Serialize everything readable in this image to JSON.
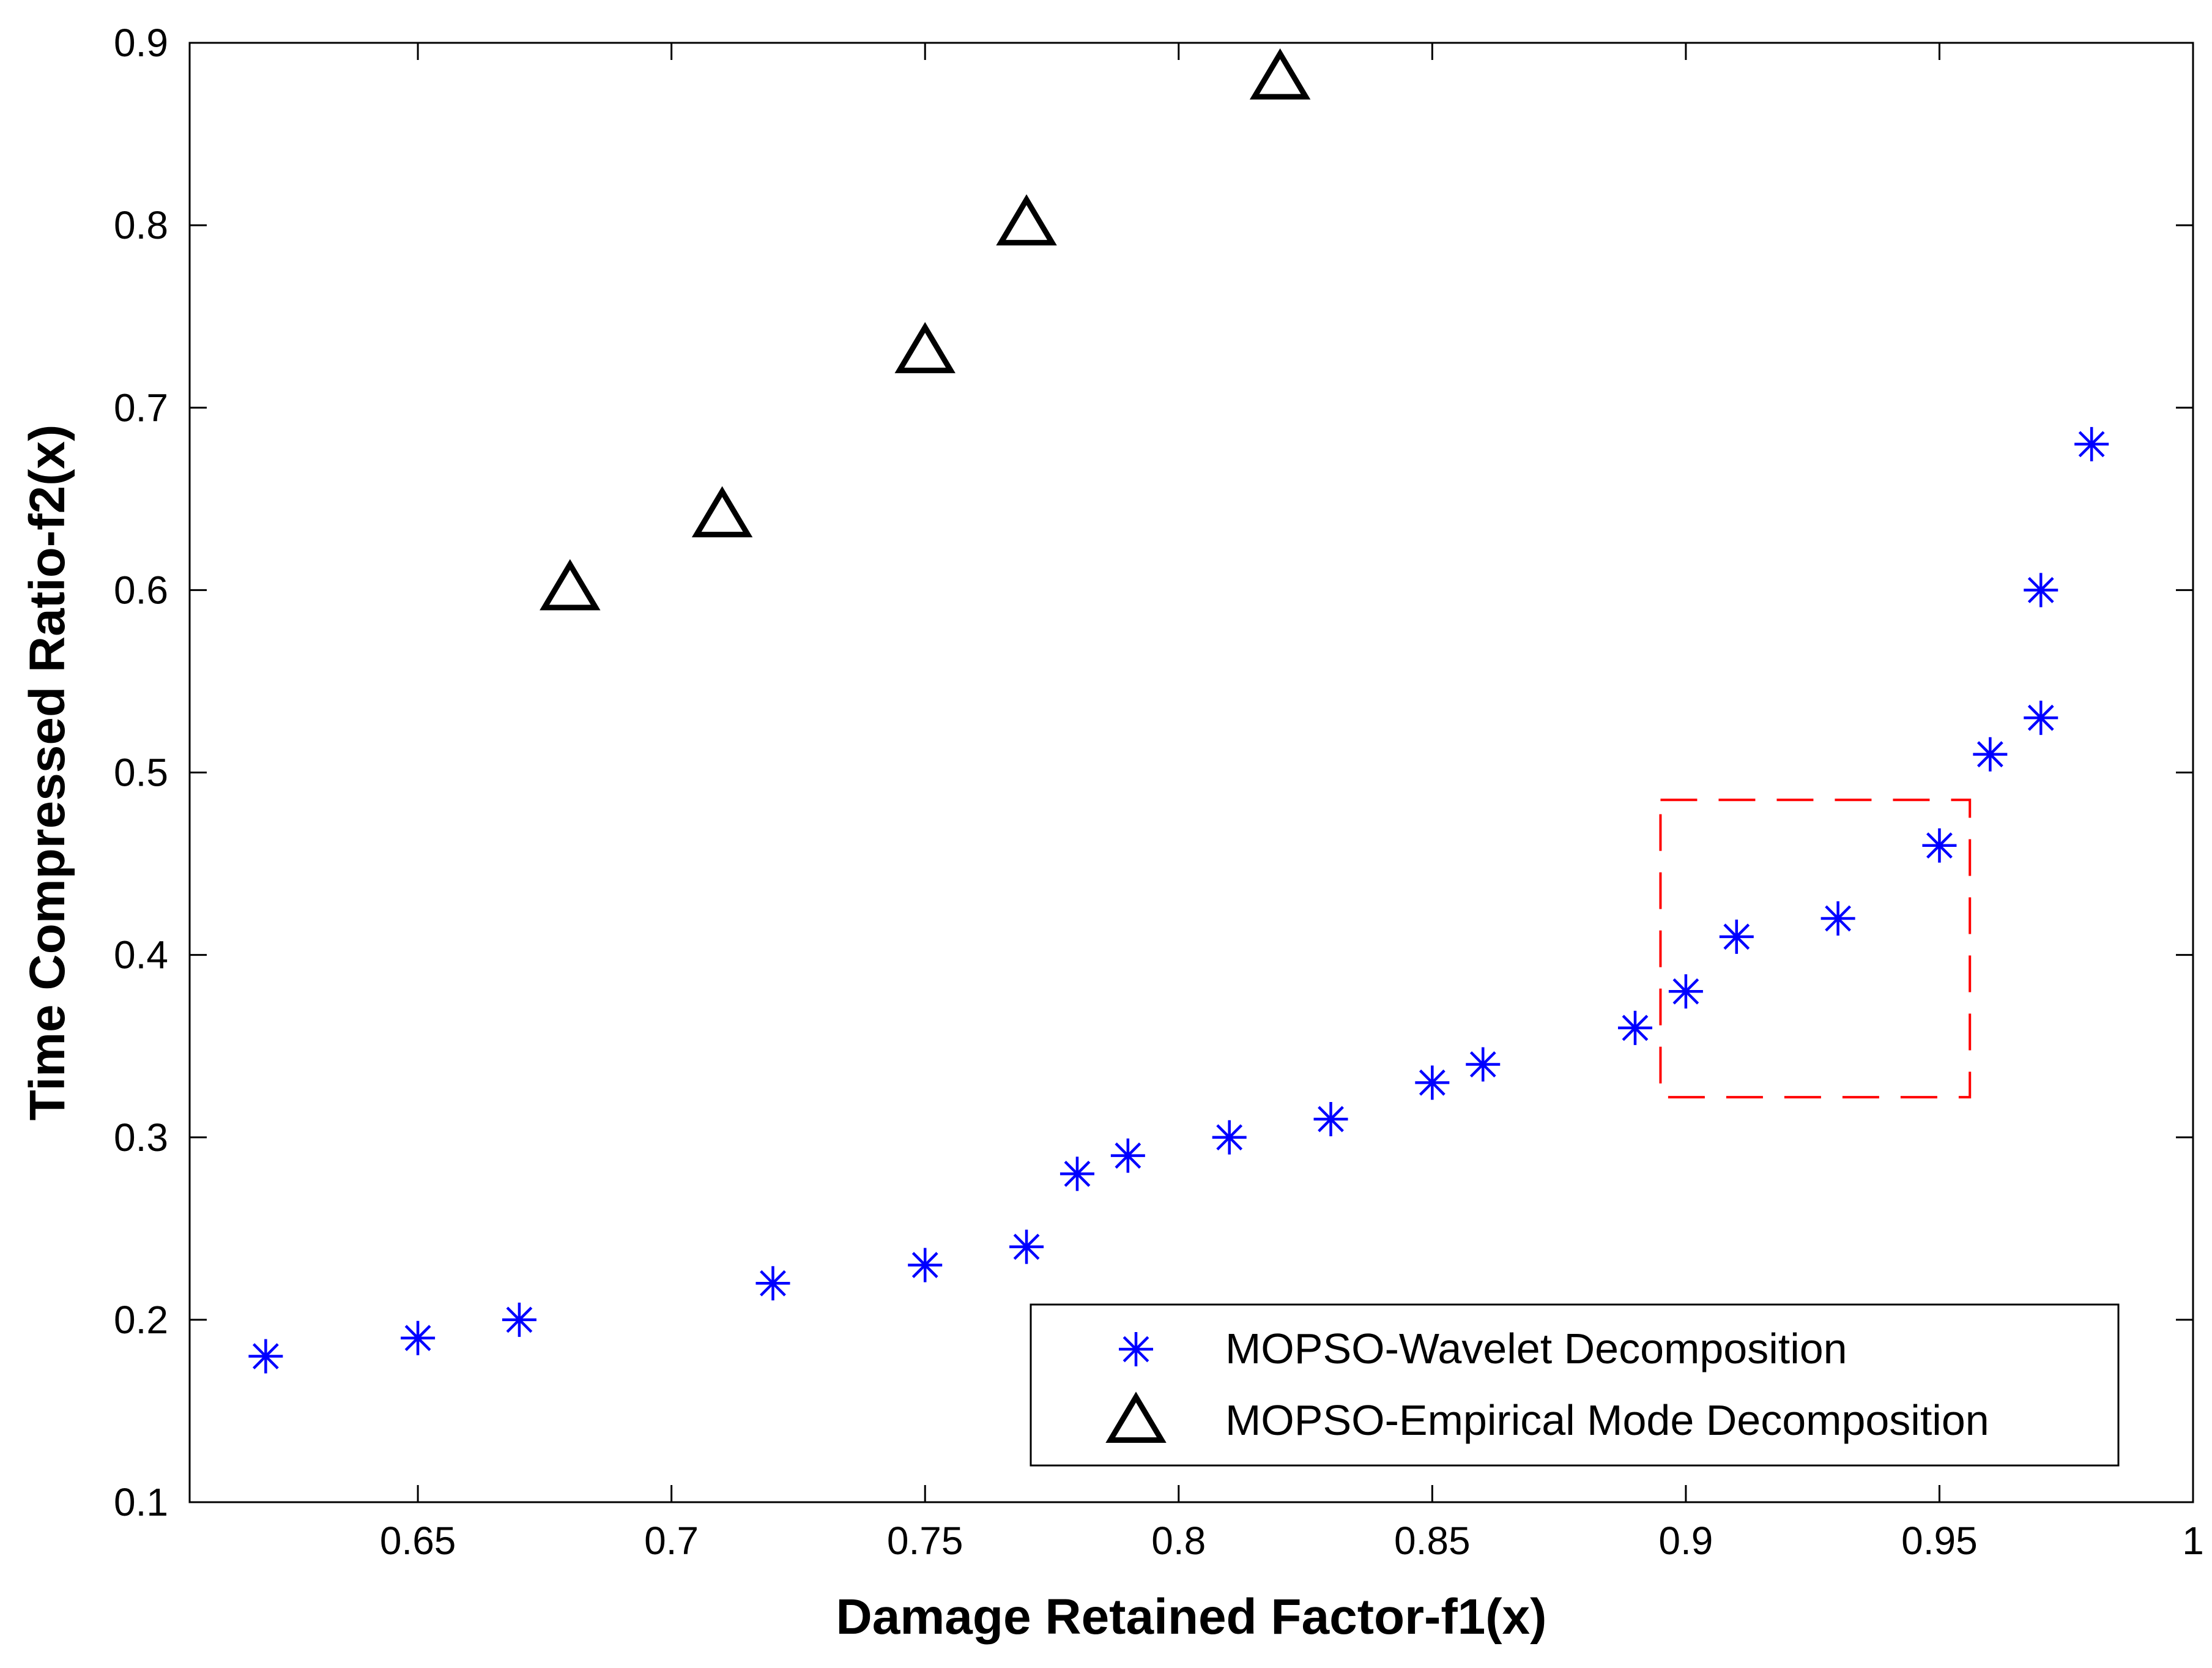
{
  "chart_data": {
    "type": "scatter",
    "title": "",
    "xlabel": "Damage Retained Factor-f1(x)",
    "ylabel": "Time Compressed Ratio-f2(x)",
    "xlim": [
      0.605,
      1.0
    ],
    "ylim": [
      0.1,
      0.9
    ],
    "xticks": [
      0.65,
      0.7,
      0.75,
      0.8,
      0.85,
      0.9,
      0.95,
      1
    ],
    "xtick_labels": [
      "0.65",
      "0.7",
      "0.75",
      "0.8",
      "0.85",
      "0.9",
      "0.95",
      "1"
    ],
    "yticks": [
      0.1,
      0.2,
      0.3,
      0.4,
      0.5,
      0.6,
      0.7,
      0.8,
      0.9
    ],
    "ytick_labels": [
      "0.1",
      "0.2",
      "0.3",
      "0.4",
      "0.5",
      "0.6",
      "0.7",
      "0.8",
      "0.9"
    ],
    "grid": false,
    "legend_position": "bottom-right",
    "series": [
      {
        "name": "MOPSO-Wavelet Decomposition",
        "marker": "asterisk",
        "color": "#0000ff",
        "x": [
          0.62,
          0.65,
          0.67,
          0.72,
          0.75,
          0.77,
          0.78,
          0.79,
          0.81,
          0.83,
          0.85,
          0.86,
          0.89,
          0.9,
          0.91,
          0.93,
          0.95,
          0.96,
          0.97,
          0.97,
          0.98
        ],
        "y": [
          0.18,
          0.19,
          0.2,
          0.22,
          0.23,
          0.24,
          0.28,
          0.29,
          0.3,
          0.31,
          0.33,
          0.34,
          0.36,
          0.38,
          0.41,
          0.42,
          0.46,
          0.51,
          0.53,
          0.6,
          0.68
        ]
      },
      {
        "name": "MOPSO-Empirical Mode Decomposition",
        "marker": "triangle",
        "color": "#000000",
        "x": [
          0.68,
          0.71,
          0.75,
          0.77,
          0.82
        ],
        "y": [
          0.6,
          0.64,
          0.73,
          0.8,
          0.88
        ]
      }
    ],
    "annotations": [
      {
        "type": "dashed-rectangle",
        "color": "#ff0000",
        "x_range": [
          0.895,
          0.956
        ],
        "y_range": [
          0.322,
          0.485
        ]
      }
    ]
  }
}
